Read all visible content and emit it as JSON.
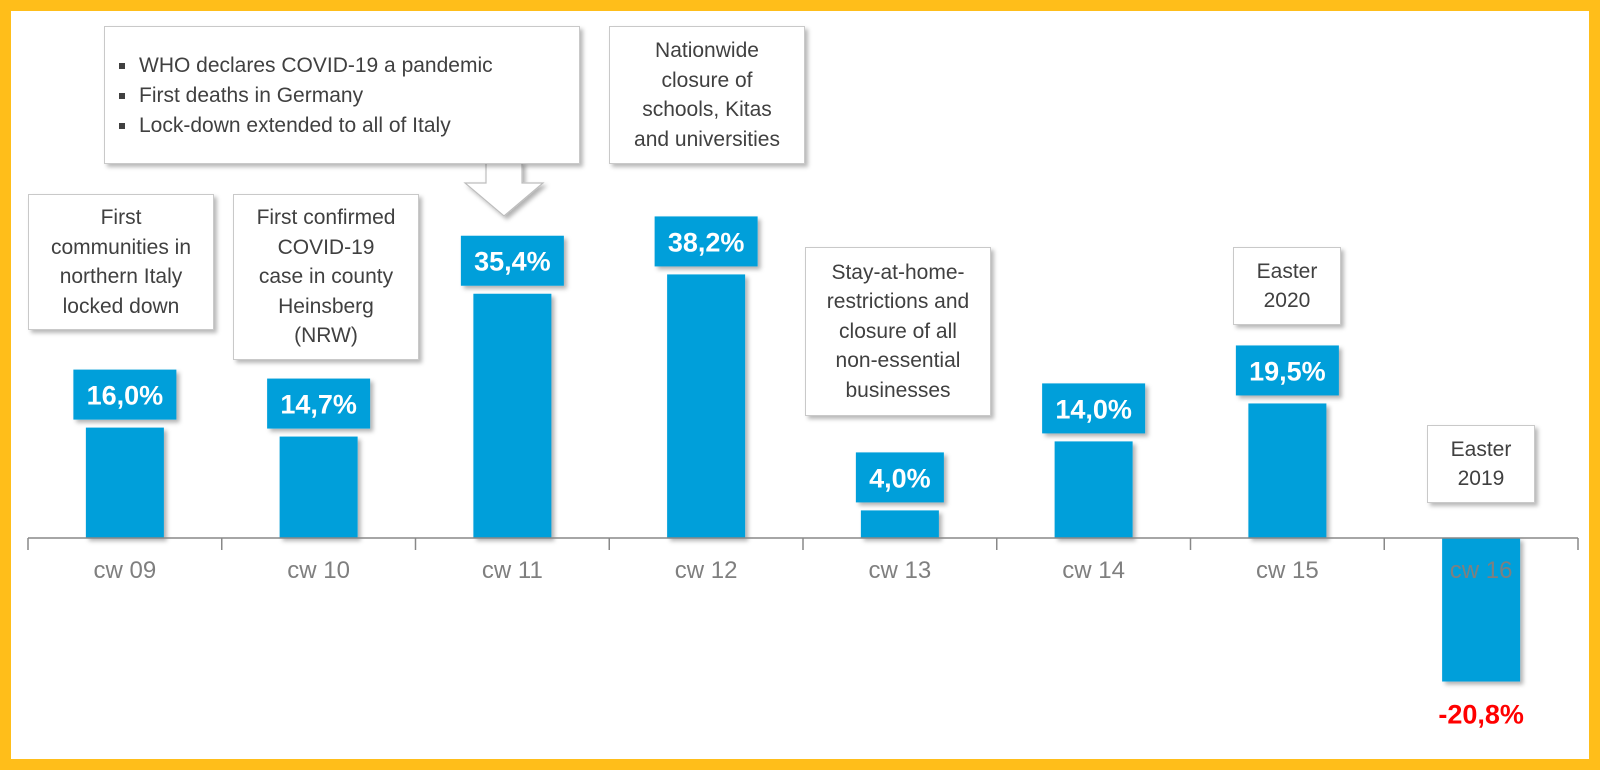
{
  "chart_data": {
    "type": "bar",
    "title": "",
    "xlabel": "",
    "ylabel": "",
    "categories": [
      "cw 09",
      "cw 10",
      "cw 11",
      "cw 12",
      "cw 13",
      "cw 14",
      "cw 15",
      "cw 16"
    ],
    "values": [
      16.0,
      14.7,
      35.4,
      38.2,
      4.0,
      14.0,
      19.5,
      -20.8
    ],
    "value_labels": [
      "16,0%",
      "14,7%",
      "35,4%",
      "38,2%",
      "4,0%",
      "14,0%",
      "19,5%",
      "-20,8%"
    ],
    "ylim": [
      -30,
      45
    ],
    "grid": false,
    "legend": "none",
    "colors": {
      "bar": "#009FDA",
      "label_bg": "#009FDA",
      "label_text": "#ffffff",
      "negative_label": "#FF0000",
      "axis": "#888888",
      "tick_label": "#7F7F7F",
      "frame": "#FFBE1A"
    },
    "annotations": {
      "cw09": "First\ncommunities in\nnorthern Italy\nlocked down",
      "cw10": "First confirmed\nCOVID-19\ncase in county\nHeinsberg\n(NRW)",
      "cw11": [
        "WHO declares COVID-19 a pandemic",
        "First deaths in Germany",
        "Lock-down extended to all of Italy"
      ],
      "cw12": "Nationwide\nclosure of\nschools, Kitas\nand universities",
      "cw13": "Stay-at-home-\nrestrictions and\nclosure of all\nnon-essential\nbusinesses",
      "cw15": "Easter\n2020",
      "cw16": "Easter\n2019"
    }
  }
}
